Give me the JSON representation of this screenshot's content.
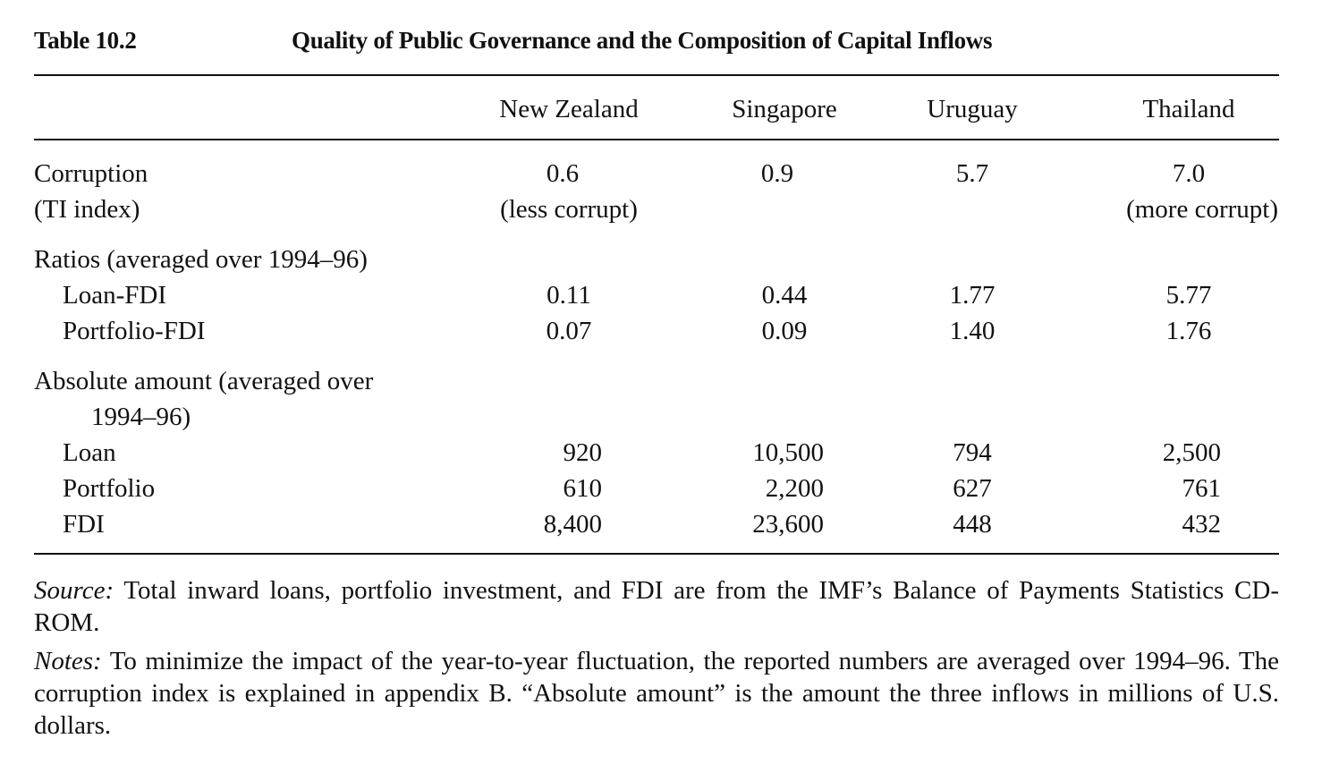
{
  "table": {
    "number": "Table 10.2",
    "title": "Quality of Public Governance and the Composition of Capital Inflows",
    "columns": [
      "New Zealand",
      "Singapore",
      "Uruguay",
      "Thailand"
    ],
    "corruption": {
      "label_line1": "Corruption",
      "label_line2": "(TI index)",
      "values": [
        "0.6",
        "0.9",
        "5.7",
        "7.0"
      ],
      "less_note": "(less corrupt)",
      "more_note": "(more corrupt)"
    },
    "ratios": {
      "heading": "Ratios (averaged over 1994–96)",
      "rows": [
        {
          "label": "Loan-FDI",
          "values": [
            "0.11",
            "0.44",
            "1.77",
            "5.77"
          ]
        },
        {
          "label": "Portfolio-FDI",
          "values": [
            "0.07",
            "0.09",
            "1.40",
            "1.76"
          ]
        }
      ]
    },
    "absolute": {
      "heading_line1": "Absolute amount (averaged over",
      "heading_line2": "1994–96)",
      "rows": [
        {
          "label": "Loan",
          "values": [
            "920",
            "10,500",
            "794",
            "2,500"
          ]
        },
        {
          "label": "Portfolio",
          "values": [
            "610",
            "2,200",
            "627",
            "761"
          ]
        },
        {
          "label": "FDI",
          "values": [
            "8,400",
            "23,600",
            "448",
            "432"
          ]
        }
      ]
    }
  },
  "notes": {
    "source_label": "Source:",
    "source_text": " Total inward loans, portfolio investment, and FDI are from the IMF’s Balance of Payments Statistics CD-ROM.",
    "notes_label": "Notes:",
    "notes_text": " To minimize the impact of the year-to-year fluctuation, the reported numbers are averaged over 1994–96. The corruption index is explained in appendix B. “Absolute amount” is the amount the three inflows in millions of U.S. dollars."
  }
}
